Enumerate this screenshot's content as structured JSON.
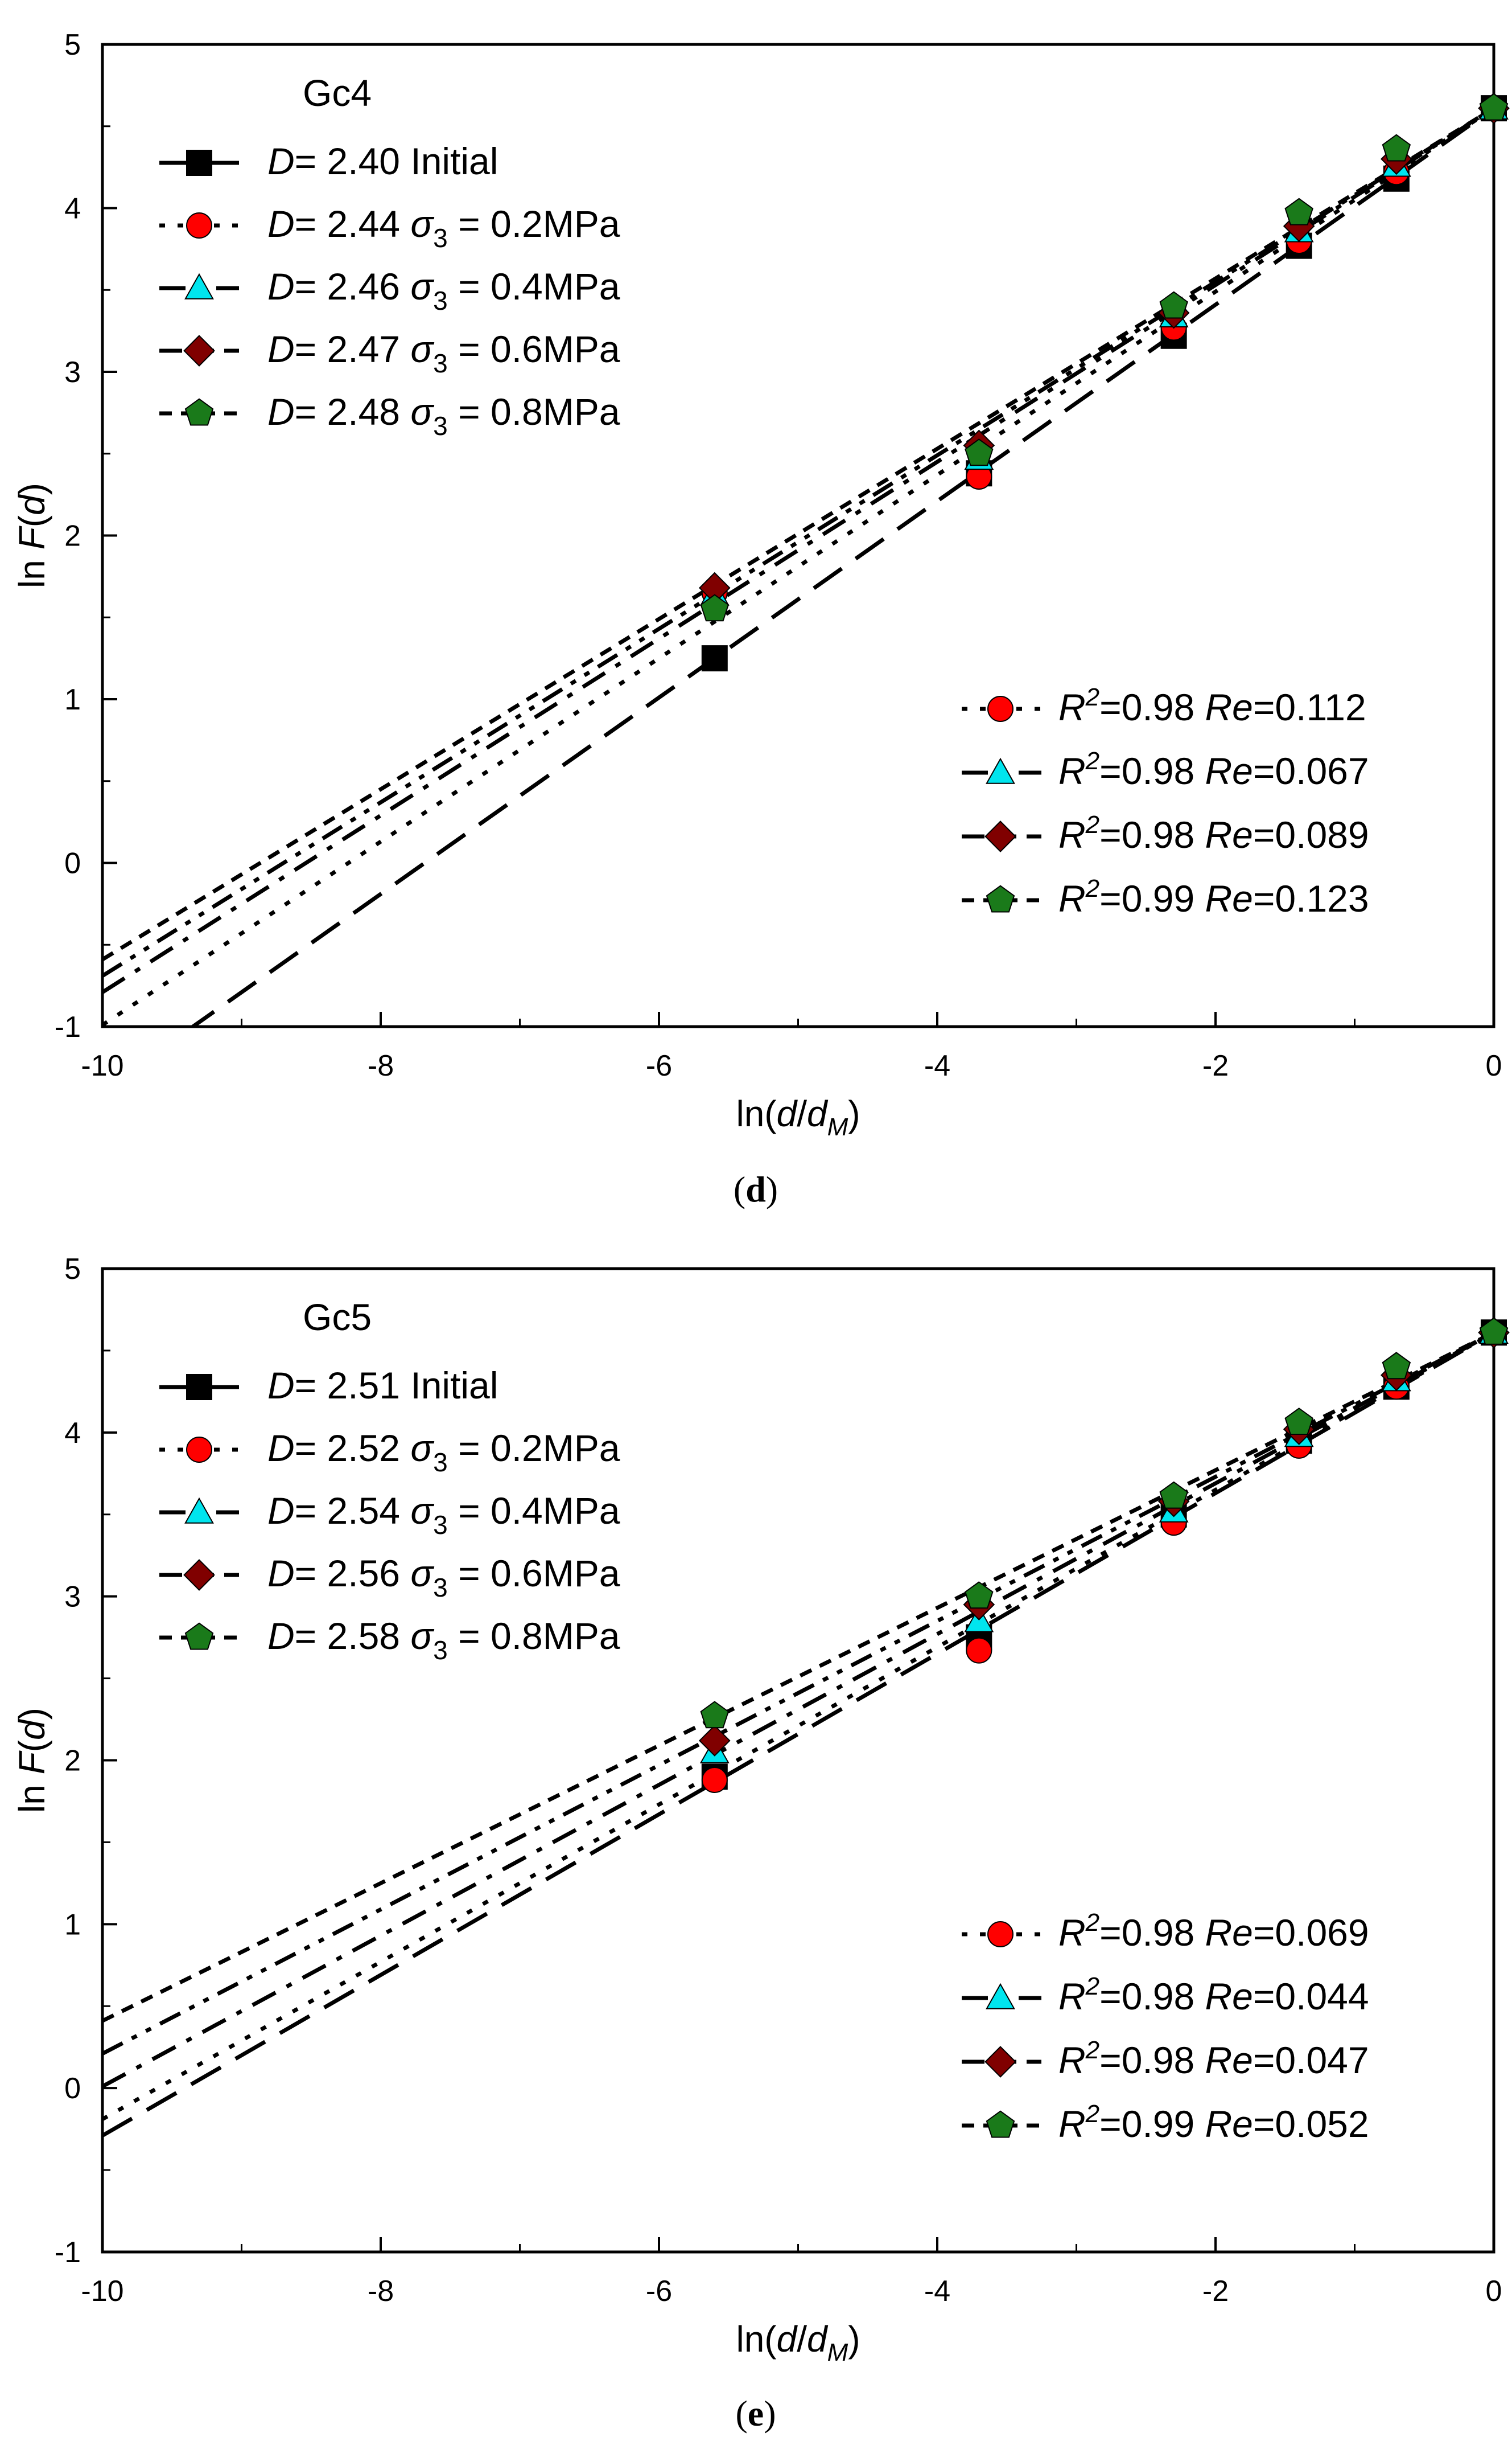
{
  "chart_data": [
    {
      "type": "scatter",
      "panel": "d",
      "title": "Gc4",
      "xlabel_parts": [
        "ln(",
        "d",
        "/",
        "d",
        "M",
        ")"
      ],
      "ylabel_parts": [
        "ln ",
        "F",
        "(",
        "d",
        ")"
      ],
      "xlim": [
        -10,
        0
      ],
      "ylim": [
        -1,
        5
      ],
      "xticks": [
        -10,
        -8,
        -6,
        -4,
        -2,
        0
      ],
      "yticks": [
        -1,
        0,
        1,
        2,
        3,
        4,
        5
      ],
      "x": [
        -5.6,
        -3.7,
        -2.3,
        -1.4,
        -0.7,
        0
      ],
      "series": [
        {
          "name": "Initial",
          "D": "2.40",
          "condition": "Initial",
          "marker": "square",
          "color": "#000000",
          "line": "dash",
          "values": [
            1.25,
            2.38,
            3.22,
            3.77,
            4.18,
            4.61
          ],
          "fit": {
            "slope": 0.6,
            "intercept": 4.61
          },
          "r2": "",
          "re": ""
        },
        {
          "name": "σ3 = 0.2MPa",
          "D": "2.44",
          "condition": "0.2MPa",
          "marker": "circle",
          "color": "#ff0000",
          "line": "dot",
          "values": [
            1.65,
            2.36,
            3.27,
            3.8,
            4.22,
            4.61
          ],
          "fit": {
            "slope": 0.56,
            "intercept": 4.61
          },
          "r2": "0.98",
          "re": "0.112"
        },
        {
          "name": "σ3 = 0.4MPa",
          "D": "2.46",
          "condition": "0.4MPa",
          "marker": "triangle",
          "color": "#00e5ee",
          "line": "dashdot",
          "values": [
            1.64,
            2.47,
            3.34,
            3.86,
            4.26,
            4.61
          ],
          "fit": {
            "slope": 0.54,
            "intercept": 4.61
          },
          "r2": "0.98",
          "re": "0.067"
        },
        {
          "name": "σ3 = 0.6MPa",
          "D": "2.47",
          "condition": "0.6MPa",
          "marker": "diamond",
          "color": "#800000",
          "line": "dashdotdot",
          "values": [
            1.68,
            2.55,
            3.36,
            3.89,
            4.3,
            4.61
          ],
          "fit": {
            "slope": 0.53,
            "intercept": 4.61
          },
          "r2": "0.98",
          "re": "0.089"
        },
        {
          "name": "σ3 = 0.8MPa",
          "D": "2.48",
          "condition": "0.8MPa",
          "marker": "pentagon",
          "color": "#1a7a1a",
          "line": "shortdash",
          "values": [
            1.55,
            2.5,
            3.4,
            3.97,
            4.36,
            4.61
          ],
          "fit": {
            "slope": 0.52,
            "intercept": 4.61
          },
          "r2": "0.99",
          "re": "0.123"
        }
      ]
    },
    {
      "type": "scatter",
      "panel": "e",
      "title": "Gc5",
      "xlabel_parts": [
        "ln(",
        "d",
        "/",
        "d",
        "M",
        ")"
      ],
      "ylabel_parts": [
        "ln ",
        "F",
        "(",
        "d",
        ")"
      ],
      "xlim": [
        -10,
        0
      ],
      "ylim": [
        -1,
        5
      ],
      "xticks": [
        -10,
        -8,
        -6,
        -4,
        -2,
        0
      ],
      "yticks": [
        -1,
        0,
        1,
        2,
        3,
        4,
        5
      ],
      "x": [
        -5.6,
        -3.7,
        -2.3,
        -1.4,
        -0.7,
        0
      ],
      "series": [
        {
          "name": "Initial",
          "D": "2.51",
          "condition": "Initial",
          "marker": "square",
          "color": "#000000",
          "line": "dash",
          "values": [
            1.9,
            2.75,
            3.5,
            3.95,
            4.28,
            4.61
          ],
          "fit": {
            "slope": 0.49,
            "intercept": 4.61
          },
          "r2": "",
          "re": ""
        },
        {
          "name": "σ3 = 0.2MPa",
          "D": "2.52",
          "condition": "0.2MPa",
          "marker": "circle",
          "color": "#ff0000",
          "line": "dot",
          "values": [
            1.88,
            2.67,
            3.45,
            3.92,
            4.28,
            4.61
          ],
          "fit": {
            "slope": 0.48,
            "intercept": 4.61
          },
          "r2": "0.98",
          "re": "0.069"
        },
        {
          "name": "σ3 = 0.4MPa",
          "D": "2.54",
          "condition": "0.4MPa",
          "marker": "triangle",
          "color": "#00e5ee",
          "line": "dashdot",
          "values": [
            2.05,
            2.85,
            3.52,
            3.98,
            4.32,
            4.61
          ],
          "fit": {
            "slope": 0.46,
            "intercept": 4.61
          },
          "r2": "0.98",
          "re": "0.044"
        },
        {
          "name": "σ3 = 0.6MPa",
          "D": "2.56",
          "condition": "0.6MPa",
          "marker": "diamond",
          "color": "#800000",
          "line": "dashdotdot",
          "values": [
            2.12,
            2.95,
            3.58,
            4.02,
            4.35,
            4.61
          ],
          "fit": {
            "slope": 0.44,
            "intercept": 4.61
          },
          "r2": "0.98",
          "re": "0.047"
        },
        {
          "name": "σ3 = 0.8MPa",
          "D": "2.58",
          "condition": "0.8MPa",
          "marker": "pentagon",
          "color": "#1a7a1a",
          "line": "shortdash",
          "values": [
            2.27,
            3.0,
            3.61,
            4.06,
            4.4,
            4.61
          ],
          "fit": {
            "slope": 0.42,
            "intercept": 4.61
          },
          "r2": "0.99",
          "re": "0.052"
        }
      ]
    }
  ],
  "legend_text": {
    "d_prefix": "D",
    "d_eq": "= ",
    "sigma": "σ",
    "sigma_sub": "3",
    "sigma_eq": " = ",
    "r_sym": "R",
    "r_sup": "2",
    "r_eq": "=",
    "re_sym": "Re",
    "re_eq": "="
  },
  "panel_labels": [
    {
      "open": "(",
      "letter": "d",
      "close": ")"
    },
    {
      "open": "(",
      "letter": "e",
      "close": ")"
    }
  ]
}
